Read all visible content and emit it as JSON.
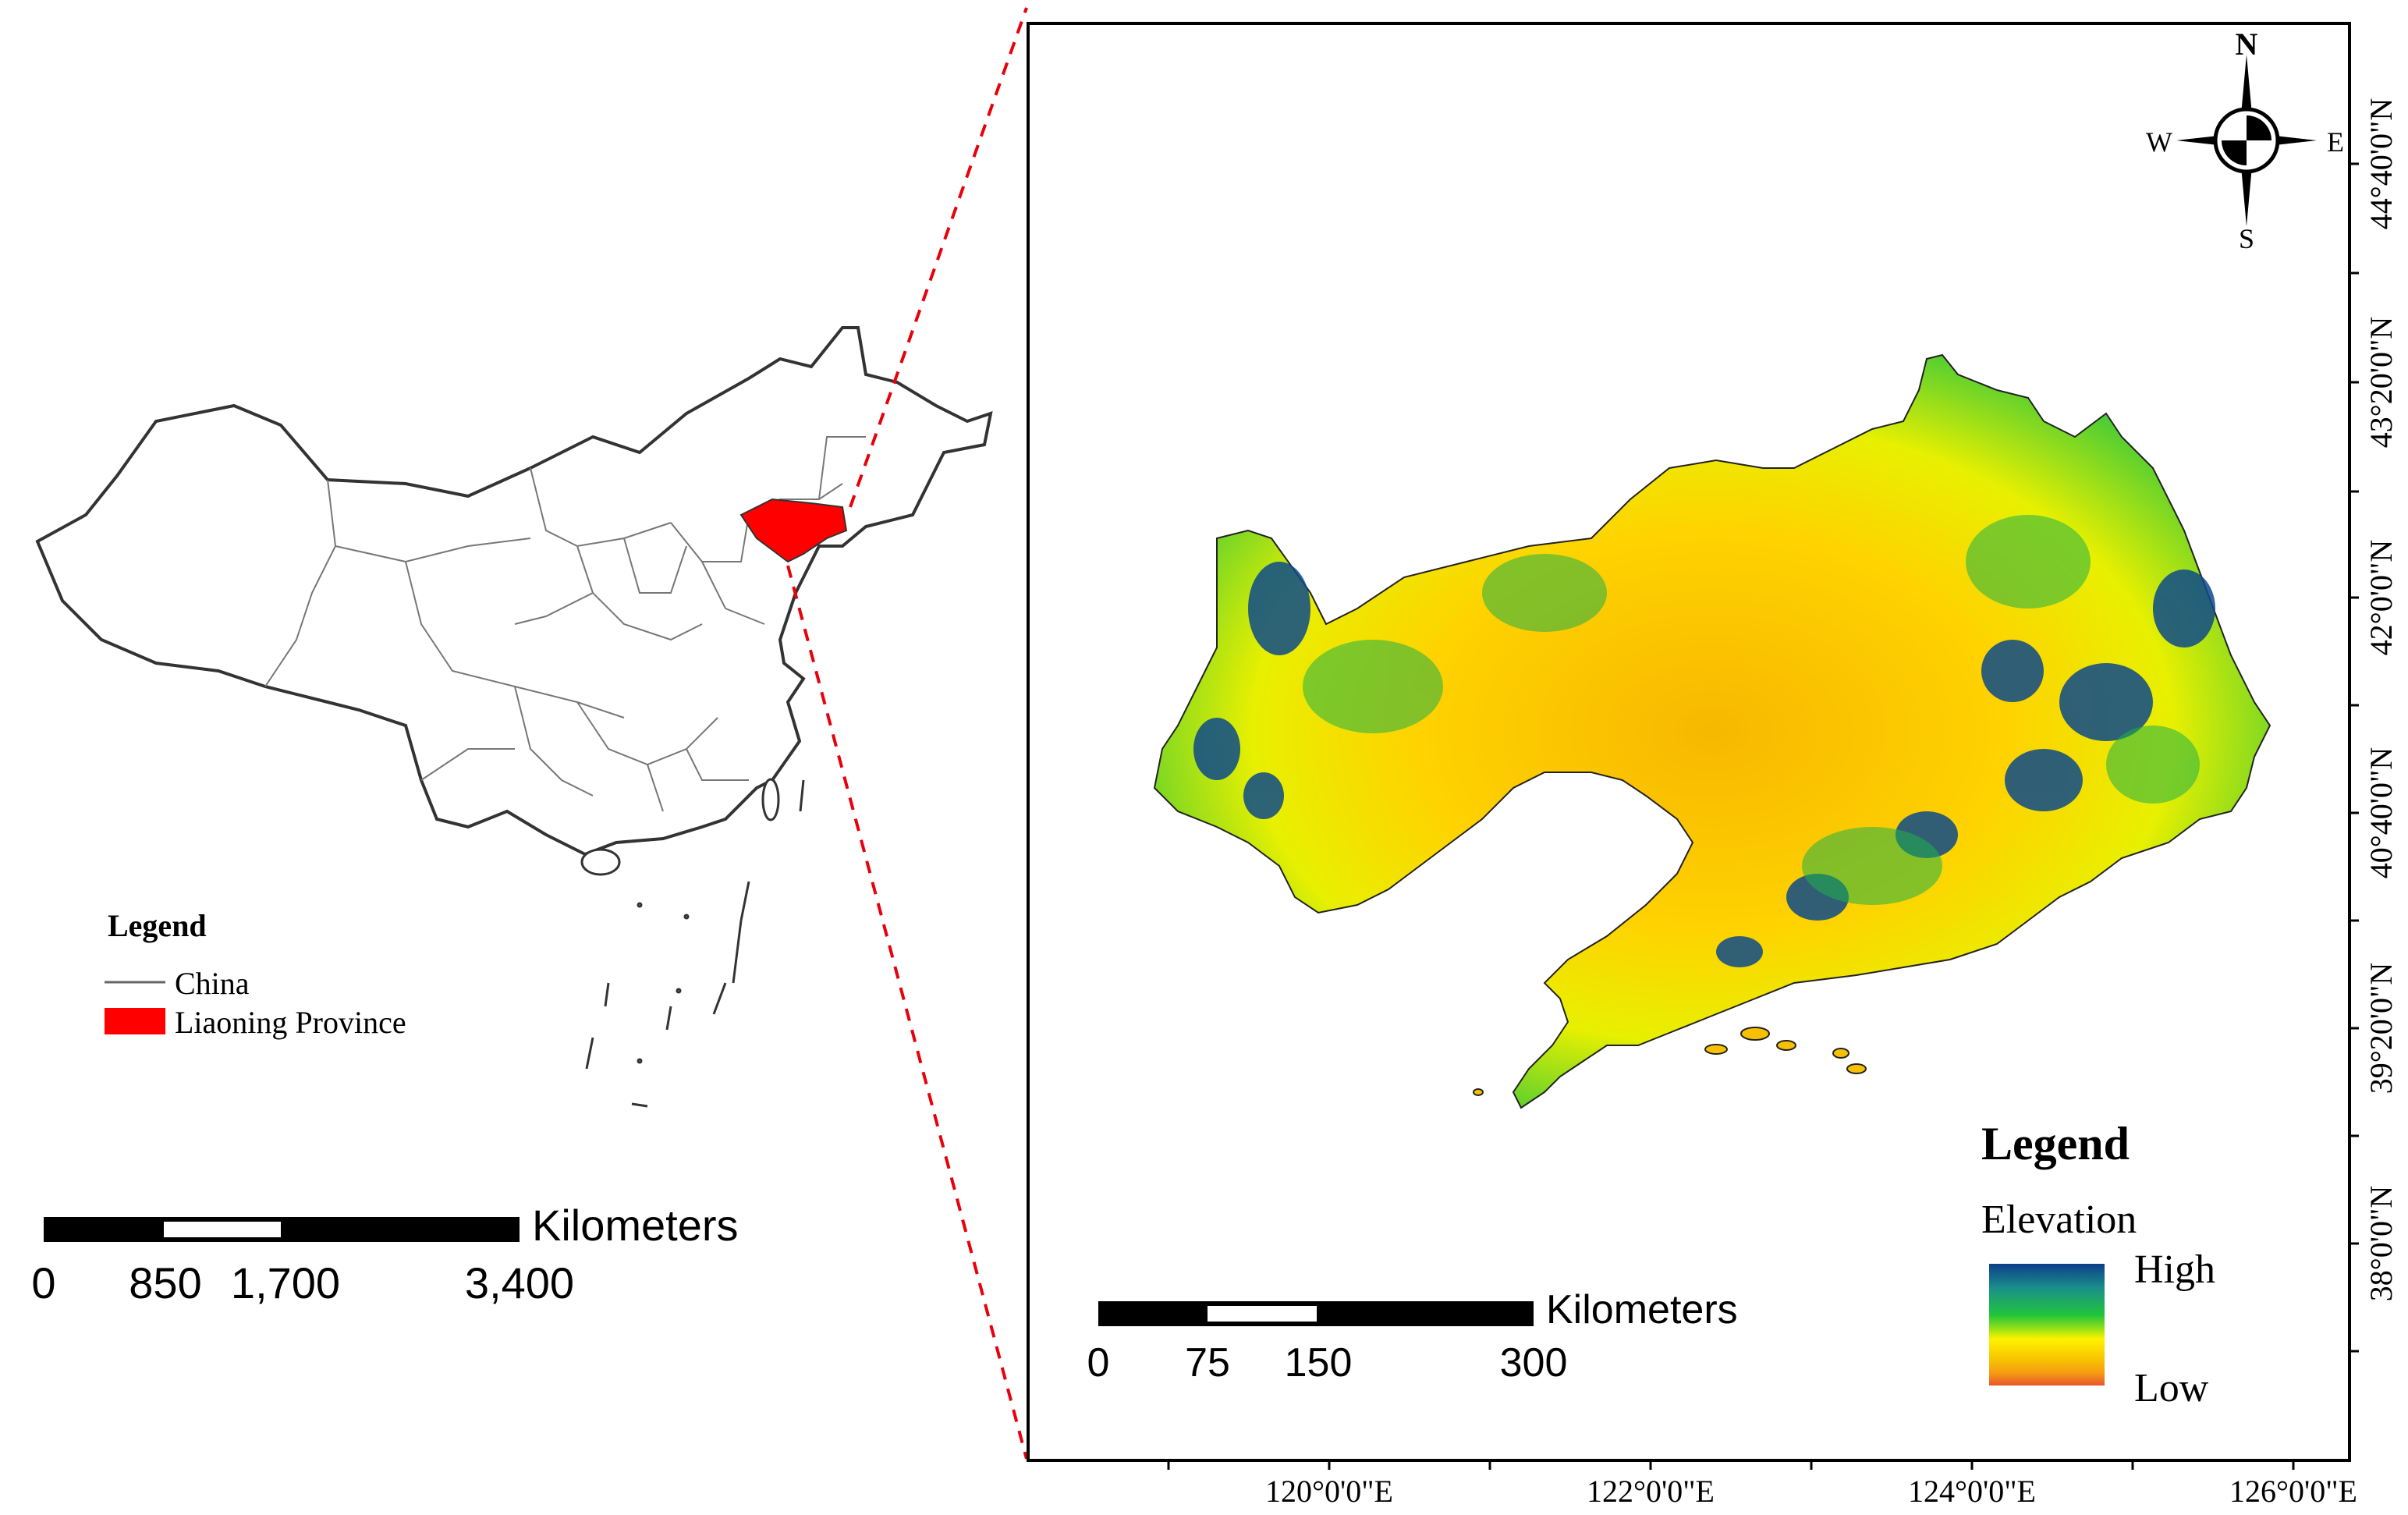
{
  "overview_map": {
    "legend": {
      "title": "Legend",
      "items": [
        {
          "label": "China",
          "symbol": "line",
          "color": "#666666"
        },
        {
          "label": "Liaoning Province",
          "symbol": "fill",
          "color": "#ff0000"
        }
      ]
    },
    "scale_bar": {
      "unit": "Kilometers",
      "ticks": [
        "0",
        "850",
        "1,700",
        "3,400"
      ]
    }
  },
  "detail_map": {
    "compass": {
      "north": "N",
      "south": "S",
      "east": "E",
      "west": "W"
    },
    "longitude_labels": [
      "120°0'0\"E",
      "122°0'0\"E",
      "124°0'0\"E",
      "126°0'0\"E"
    ],
    "latitude_labels": [
      "44°40'0\"N",
      "43°20'0\"N",
      "42°0'0\"N",
      "40°40'0\"N",
      "39°20'0\"N",
      "38°0'0\"N"
    ],
    "legend": {
      "title": "Legend",
      "subtitle": "Elevation",
      "high_label": "High",
      "low_label": "Low",
      "ramp_colors": [
        "#0d3f8a",
        "#1b8f8a",
        "#21c43c",
        "#a8e60f",
        "#fff200",
        "#f7c600",
        "#f59a12",
        "#e8542d"
      ]
    },
    "scale_bar": {
      "unit": "Kilometers",
      "ticks": [
        "0",
        "75",
        "150",
        "300"
      ]
    }
  },
  "colors": {
    "highlight": "#ff0000",
    "leader_line": "#e8000b",
    "frame": "#000000"
  }
}
